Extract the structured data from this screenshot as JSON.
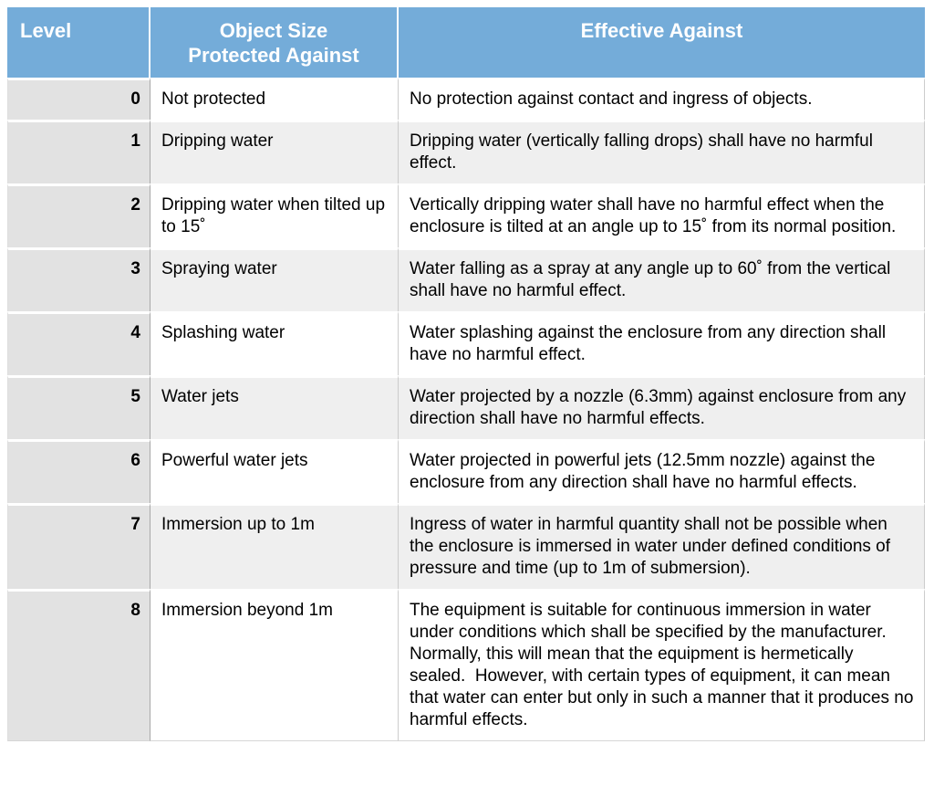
{
  "colors": {
    "header_bg": "#74acd9",
    "header_text": "#ffffff",
    "level_column_bg": "#e2e2e2",
    "alt_row_bg": "#efefef",
    "row_bg": "#ffffff",
    "body_text": "#000000",
    "grid_line": "#cccccc"
  },
  "table": {
    "headers": {
      "level": "Level",
      "object_size": "Object Size\nProtected Against",
      "effective": "Effective Against"
    },
    "rows": [
      {
        "level": "0",
        "object_size": "Not protected",
        "effective": "No protection against contact and ingress of objects."
      },
      {
        "level": "1",
        "object_size": "Dripping water",
        "effective": "Dripping water (vertically falling drops) shall have no harmful effect."
      },
      {
        "level": "2",
        "object_size": "Dripping water when tilted up to 15˚",
        "effective": "Vertically dripping water shall have no harmful effect when the enclosure is tilted at an angle up to 15˚ from its normal position."
      },
      {
        "level": "3",
        "object_size": "Spraying water",
        "effective": "Water falling as a spray at any angle up to 60˚ from the vertical shall have no harmful effect."
      },
      {
        "level": "4",
        "object_size": "Splashing water",
        "effective": "Water splashing against the enclosure from any direction shall have no harmful effect."
      },
      {
        "level": "5",
        "object_size": "Water jets",
        "effective": "Water projected by a nozzle (6.3mm) against enclosure from any direction shall have no harmful effects."
      },
      {
        "level": "6",
        "object_size": "Powerful water jets",
        "effective": "Water projected in powerful jets (12.5mm nozzle) against the enclosure from any direction shall have no harmful effects."
      },
      {
        "level": "7",
        "object_size": "Immersion up to 1m",
        "effective": "Ingress of water in harmful quantity shall not be possible when the enclosure is immersed in water under defined conditions of pressure and time (up to 1m of submersion)."
      },
      {
        "level": "8",
        "object_size": "Immersion beyond 1m",
        "effective": "The equipment is suitable for continuous immersion in water under conditions which shall be specified by the manufacturer.  Normally, this will mean that the equipment is hermetically sealed.  However, with certain types of equipment, it can mean that water can enter but only in such a manner that it produces no harmful effects."
      }
    ]
  }
}
